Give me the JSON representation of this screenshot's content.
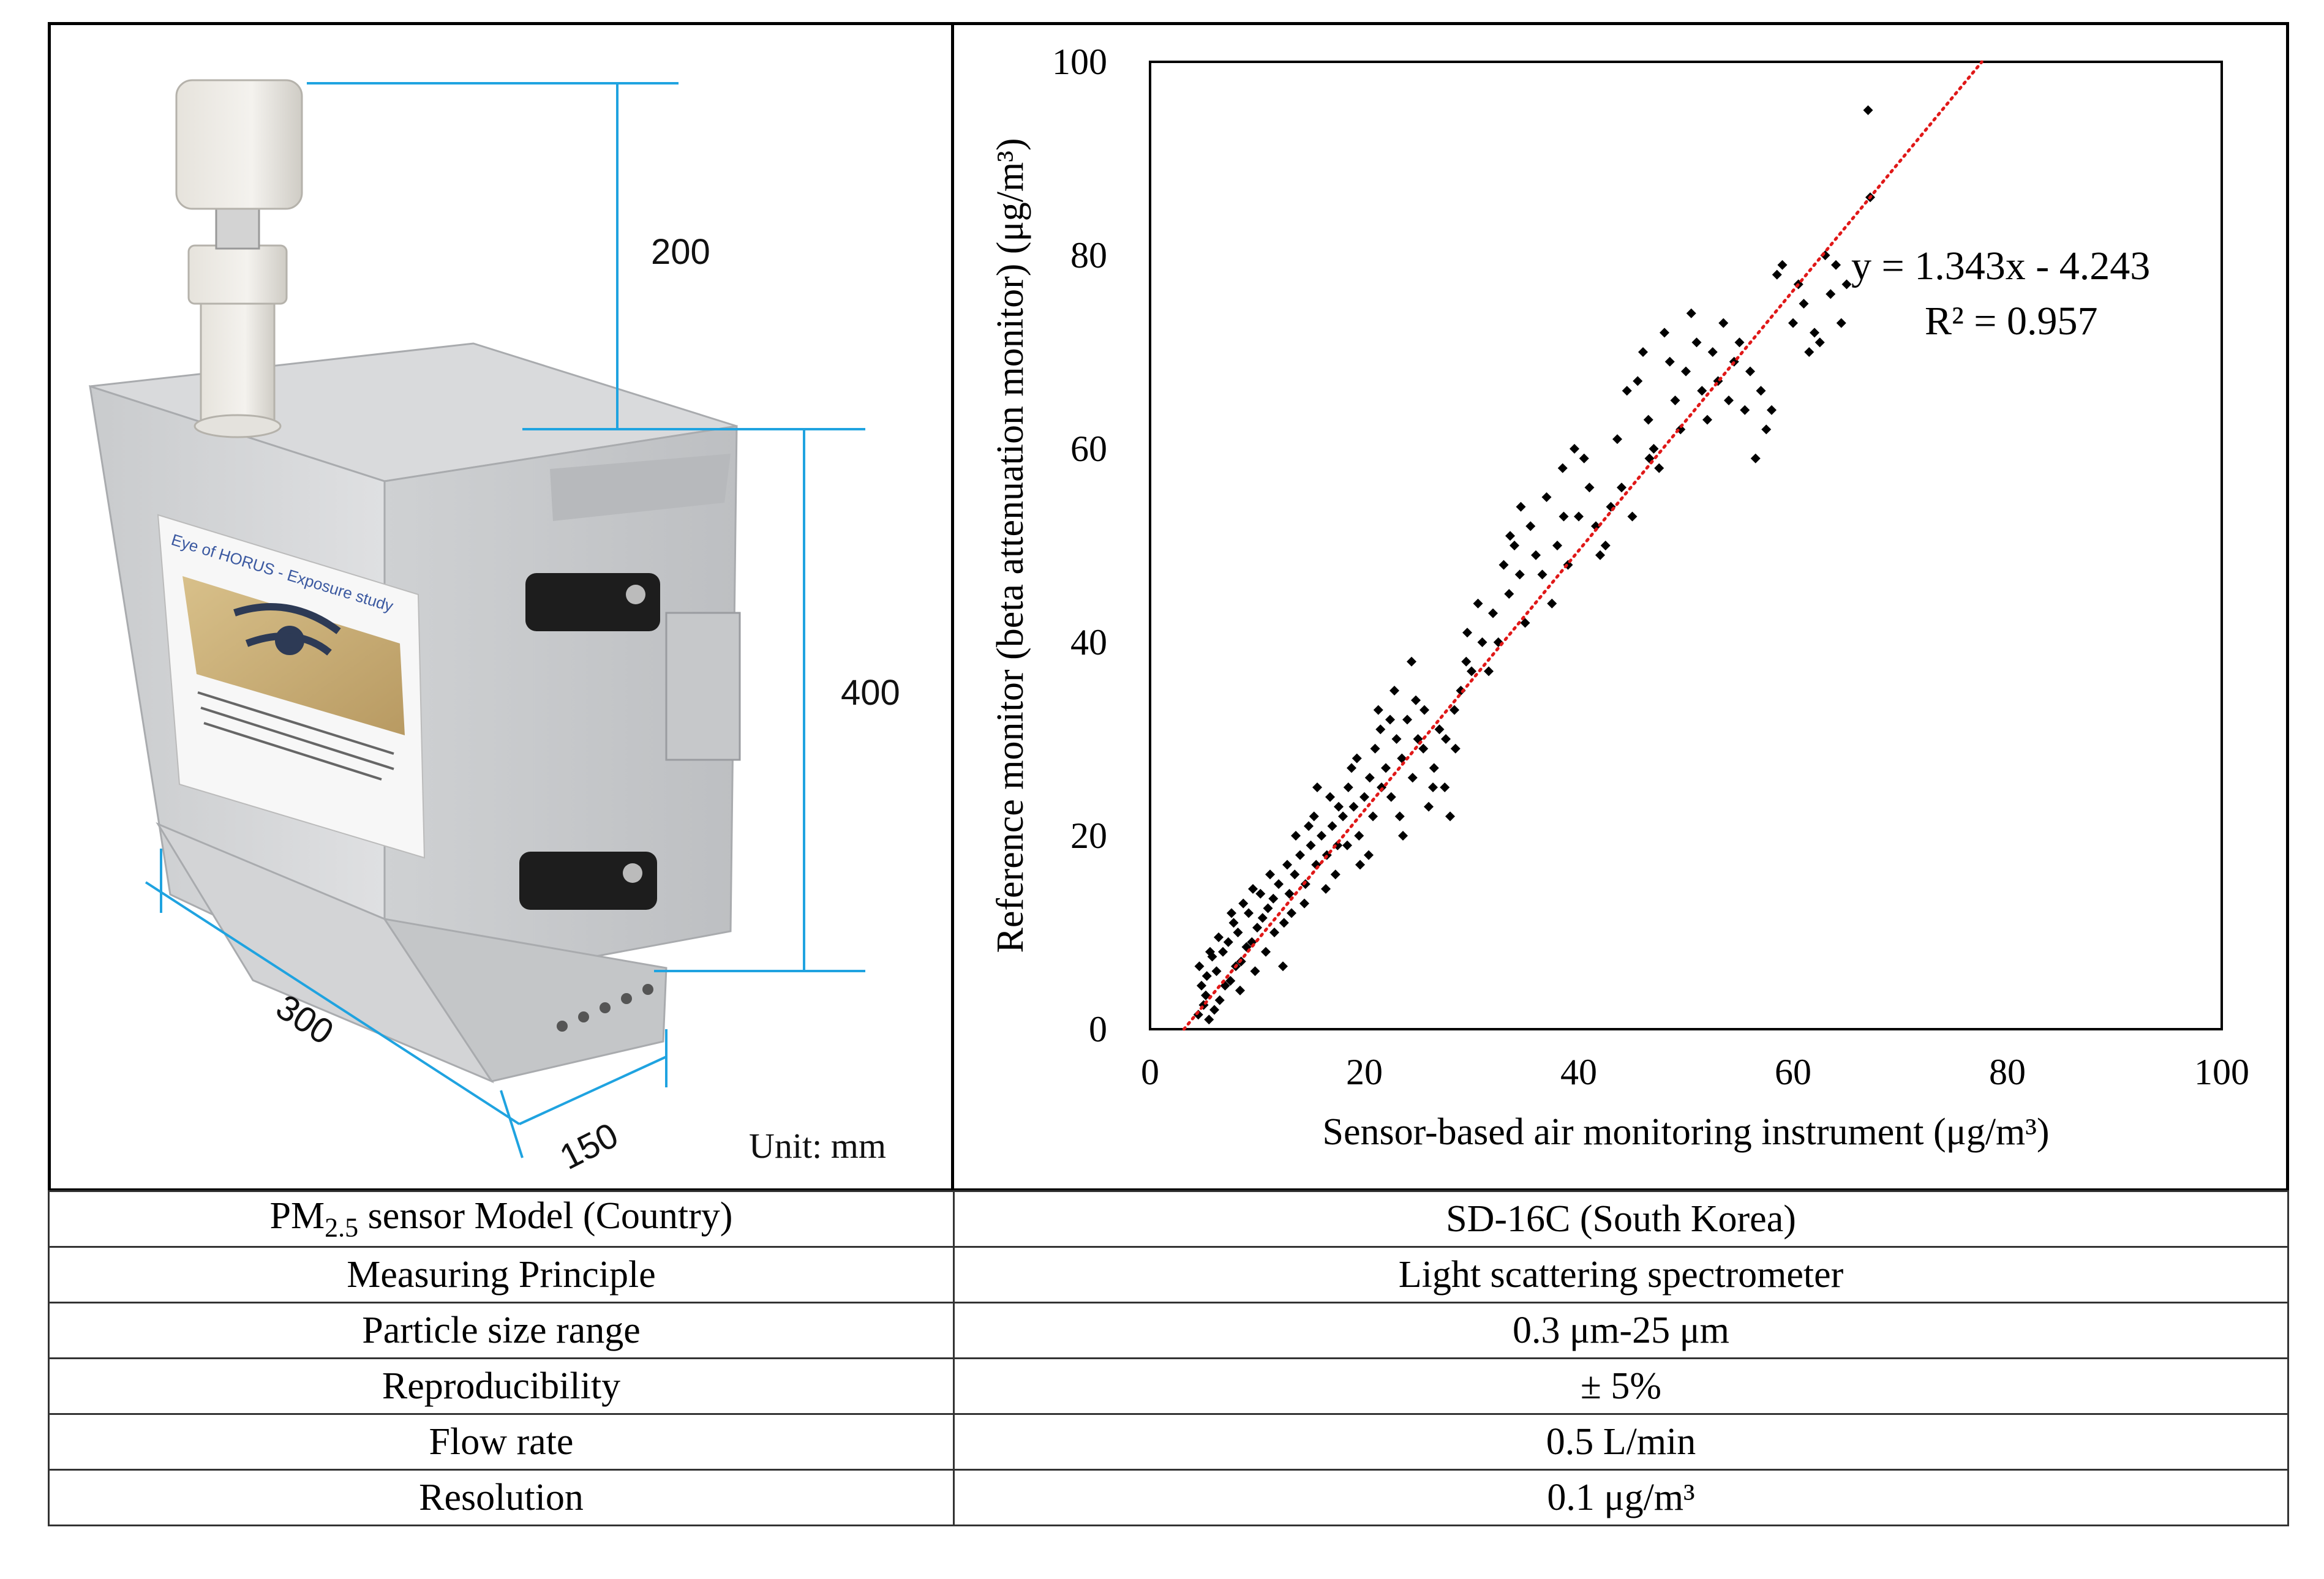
{
  "photo": {
    "dimensions": {
      "inlet_height": "200",
      "box_height": "400",
      "box_width": "300",
      "box_depth": "150"
    },
    "unit_label": "Unit: mm",
    "sticker_title": "Eye of HORUS - Exposure study"
  },
  "chart_data": {
    "type": "scatter",
    "xlabel": "Sensor-based air monitoring instrument (μg/m³)",
    "ylabel": "Reference monitor (beta attenuation monitor) (μg/m³)",
    "xlim": [
      0,
      100
    ],
    "ylim": [
      0,
      100
    ],
    "xticks": [
      "0",
      "20",
      "40",
      "60",
      "80",
      "100"
    ],
    "yticks": [
      "0",
      "20",
      "40",
      "60",
      "80",
      "100"
    ],
    "grid": false,
    "legend": "none",
    "trendline": {
      "equation": "y = 1.343x - 4.243",
      "r_squared": "R² = 0.957",
      "slope": 1.343,
      "intercept": -4.243,
      "style": "red dotted"
    },
    "points": [
      [
        4.5,
        1.5
      ],
      [
        5,
        2.5
      ],
      [
        5.2,
        3.5
      ],
      [
        4.8,
        4.5
      ],
      [
        5.5,
        1
      ],
      [
        6,
        2
      ],
      [
        5.3,
        5.5
      ],
      [
        4.6,
        6.5
      ],
      [
        6.5,
        3
      ],
      [
        7,
        4.5
      ],
      [
        6.2,
        6
      ],
      [
        5.8,
        7.5
      ],
      [
        7.5,
        5
      ],
      [
        8,
        6.5
      ],
      [
        6.8,
        8
      ],
      [
        7.3,
        9
      ],
      [
        8.5,
        7
      ],
      [
        9,
        8.5
      ],
      [
        8.2,
        10
      ],
      [
        7.8,
        11
      ],
      [
        9.5,
        9
      ],
      [
        10,
        10.5
      ],
      [
        9.2,
        12
      ],
      [
        8.7,
        13
      ],
      [
        10.5,
        11.5
      ],
      [
        11,
        12.5
      ],
      [
        10.3,
        14
      ],
      [
        9.8,
        6
      ],
      [
        11.5,
        13.5
      ],
      [
        12,
        15
      ],
      [
        11.2,
        16
      ],
      [
        12.5,
        11
      ],
      [
        13,
        14
      ],
      [
        12.8,
        17
      ],
      [
        13.5,
        16
      ],
      [
        14,
        18
      ],
      [
        13.2,
        12
      ],
      [
        14.5,
        15
      ],
      [
        15,
        19
      ],
      [
        14.8,
        21
      ],
      [
        15.5,
        17
      ],
      [
        16,
        20
      ],
      [
        15.3,
        22
      ],
      [
        16.5,
        18
      ],
      [
        17,
        21
      ],
      [
        16.8,
        24
      ],
      [
        17.5,
        19
      ],
      [
        18,
        22
      ],
      [
        17.3,
        16
      ],
      [
        18.5,
        25
      ],
      [
        19,
        23
      ],
      [
        18.8,
        27
      ],
      [
        19.5,
        20
      ],
      [
        20,
        24
      ],
      [
        19.3,
        28
      ],
      [
        20.5,
        26
      ],
      [
        21,
        29
      ],
      [
        20.8,
        22
      ],
      [
        21.5,
        31
      ],
      [
        22,
        27
      ],
      [
        21.3,
        33
      ],
      [
        22.5,
        24
      ],
      [
        23,
        30
      ],
      [
        22.8,
        35
      ],
      [
        23.5,
        28
      ],
      [
        24,
        32
      ],
      [
        23.3,
        22
      ],
      [
        24.5,
        26
      ],
      [
        25,
        30
      ],
      [
        24.8,
        34
      ],
      [
        25.5,
        29
      ],
      [
        26,
        23
      ],
      [
        26.5,
        27
      ],
      [
        27,
        31
      ],
      [
        27.5,
        25
      ],
      [
        28,
        22
      ],
      [
        28.5,
        29
      ],
      [
        29,
        35
      ],
      [
        29.5,
        38
      ],
      [
        30,
        37
      ],
      [
        31,
        40
      ],
      [
        32,
        43
      ],
      [
        32.5,
        40
      ],
      [
        33,
        48
      ],
      [
        33.5,
        45
      ],
      [
        34,
        50
      ],
      [
        34.5,
        47
      ],
      [
        35,
        42
      ],
      [
        35.5,
        52
      ],
      [
        36,
        49
      ],
      [
        37,
        55
      ],
      [
        37.5,
        44
      ],
      [
        38,
        50
      ],
      [
        38.5,
        58
      ],
      [
        39,
        48
      ],
      [
        40,
        53
      ],
      [
        40.5,
        59
      ],
      [
        41,
        56
      ],
      [
        42,
        49
      ],
      [
        42.5,
        50
      ],
      [
        43,
        54
      ],
      [
        44,
        56
      ],
      [
        44.5,
        66
      ],
      [
        45,
        53
      ],
      [
        45.5,
        67
      ],
      [
        46,
        70
      ],
      [
        46.5,
        63
      ],
      [
        47,
        60
      ],
      [
        47.5,
        58
      ],
      [
        48,
        72
      ],
      [
        48.5,
        69
      ],
      [
        49,
        65
      ],
      [
        49.5,
        62
      ],
      [
        50,
        68
      ],
      [
        50.5,
        74
      ],
      [
        51,
        71
      ],
      [
        51.5,
        66
      ],
      [
        52,
        63
      ],
      [
        52.5,
        70
      ],
      [
        53,
        67
      ],
      [
        53.5,
        73
      ],
      [
        54,
        65
      ],
      [
        54.5,
        69
      ],
      [
        55,
        71
      ],
      [
        55.5,
        64
      ],
      [
        56,
        68
      ],
      [
        56.5,
        59
      ],
      [
        57,
        66
      ],
      [
        57.5,
        62
      ],
      [
        58,
        64
      ],
      [
        58.5,
        78
      ],
      [
        59,
        79
      ],
      [
        60,
        73
      ],
      [
        60.5,
        77
      ],
      [
        61,
        75
      ],
      [
        61.5,
        70
      ],
      [
        62,
        72
      ],
      [
        62.5,
        71
      ],
      [
        63,
        80
      ],
      [
        63.5,
        76
      ],
      [
        64,
        79
      ],
      [
        64.5,
        73
      ],
      [
        65,
        77
      ],
      [
        67,
        95
      ],
      [
        67.2,
        86
      ],
      [
        5.6,
        8
      ],
      [
        6.4,
        9.5
      ],
      [
        7.6,
        12
      ],
      [
        8.4,
        4
      ],
      [
        9.6,
        14.5
      ],
      [
        10.8,
        8
      ],
      [
        11.6,
        10
      ],
      [
        12.4,
        6.5
      ],
      [
        13.6,
        20
      ],
      [
        14.4,
        13
      ],
      [
        15.6,
        25
      ],
      [
        16.4,
        14.5
      ],
      [
        17.6,
        23
      ],
      [
        18.4,
        19
      ],
      [
        19.6,
        17
      ],
      [
        20.4,
        18
      ],
      [
        21.6,
        25
      ],
      [
        22.4,
        32
      ],
      [
        23.6,
        20
      ],
      [
        24.4,
        38
      ],
      [
        25.6,
        33
      ],
      [
        26.4,
        25
      ],
      [
        27.6,
        30
      ],
      [
        28.4,
        33
      ],
      [
        29.6,
        41
      ],
      [
        30.6,
        44
      ],
      [
        31.6,
        37
      ],
      [
        33.6,
        51
      ],
      [
        34.6,
        54
      ],
      [
        36.6,
        47
      ],
      [
        38.6,
        53
      ],
      [
        39.6,
        60
      ],
      [
        41.6,
        52
      ],
      [
        43.6,
        61
      ],
      [
        46.6,
        59
      ]
    ]
  },
  "table": {
    "rows": [
      {
        "label_main": "PM",
        "label_sub": "2.5",
        "label_rest": " sensor Model (Country)",
        "value": "SD-16C (South Korea)"
      },
      {
        "label": "Measuring Principle",
        "value": "Light scattering spectrometer"
      },
      {
        "label": "Particle size range",
        "value": "0.3 μm-25 μm"
      },
      {
        "label": "Reproducibility",
        "value": "± 5%"
      },
      {
        "label": "Flow rate",
        "value": "0.5 L/min"
      },
      {
        "label": "Resolution",
        "value": "0.1 μg/m³"
      }
    ]
  }
}
